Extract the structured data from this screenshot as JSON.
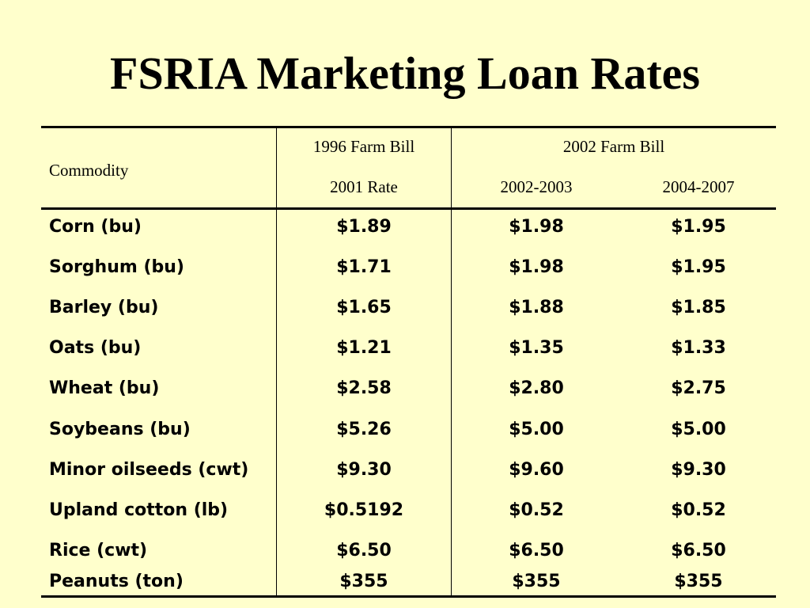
{
  "title": "FSRIA Marketing Loan Rates",
  "table": {
    "header": {
      "commodity": "Commodity",
      "group_1996": "1996 Farm Bill",
      "group_2002": "2002 Farm Bill",
      "col_2001": "2001 Rate",
      "col_2002_2003": "2002-2003",
      "col_2004_2007": "2004-2007"
    },
    "rows": [
      {
        "commodity": "Corn (bu)",
        "rate_2001": "$1.89",
        "rate_2002_2003": "$1.98",
        "rate_2004_2007": "$1.95"
      },
      {
        "commodity": "Sorghum (bu)",
        "rate_2001": "$1.71",
        "rate_2002_2003": "$1.98",
        "rate_2004_2007": "$1.95"
      },
      {
        "commodity": "Barley (bu)",
        "rate_2001": "$1.65",
        "rate_2002_2003": "$1.88",
        "rate_2004_2007": "$1.85"
      },
      {
        "commodity": "Oats (bu)",
        "rate_2001": "$1.21",
        "rate_2002_2003": "$1.35",
        "rate_2004_2007": "$1.33"
      },
      {
        "commodity": "Wheat (bu)",
        "rate_2001": "$2.58",
        "rate_2002_2003": "$2.80",
        "rate_2004_2007": "$2.75"
      },
      {
        "commodity": "Soybeans (bu)",
        "rate_2001": "$5.26",
        "rate_2002_2003": "$5.00",
        "rate_2004_2007": "$5.00"
      },
      {
        "commodity": "Minor oilseeds (cwt)",
        "rate_2001": "$9.30",
        "rate_2002_2003": "$9.60",
        "rate_2004_2007": "$9.30"
      },
      {
        "commodity": "Upland cotton (lb)",
        "rate_2001": "$0.5192",
        "rate_2002_2003": "$0.52",
        "rate_2004_2007": "$0.52"
      },
      {
        "commodity": "Rice (cwt)",
        "rate_2001": "$6.50",
        "rate_2002_2003": "$6.50",
        "rate_2004_2007": "$6.50"
      },
      {
        "commodity": "Peanuts (ton)",
        "rate_2001": "$355",
        "rate_2002_2003": "$355",
        "rate_2004_2007": "$355"
      }
    ]
  }
}
